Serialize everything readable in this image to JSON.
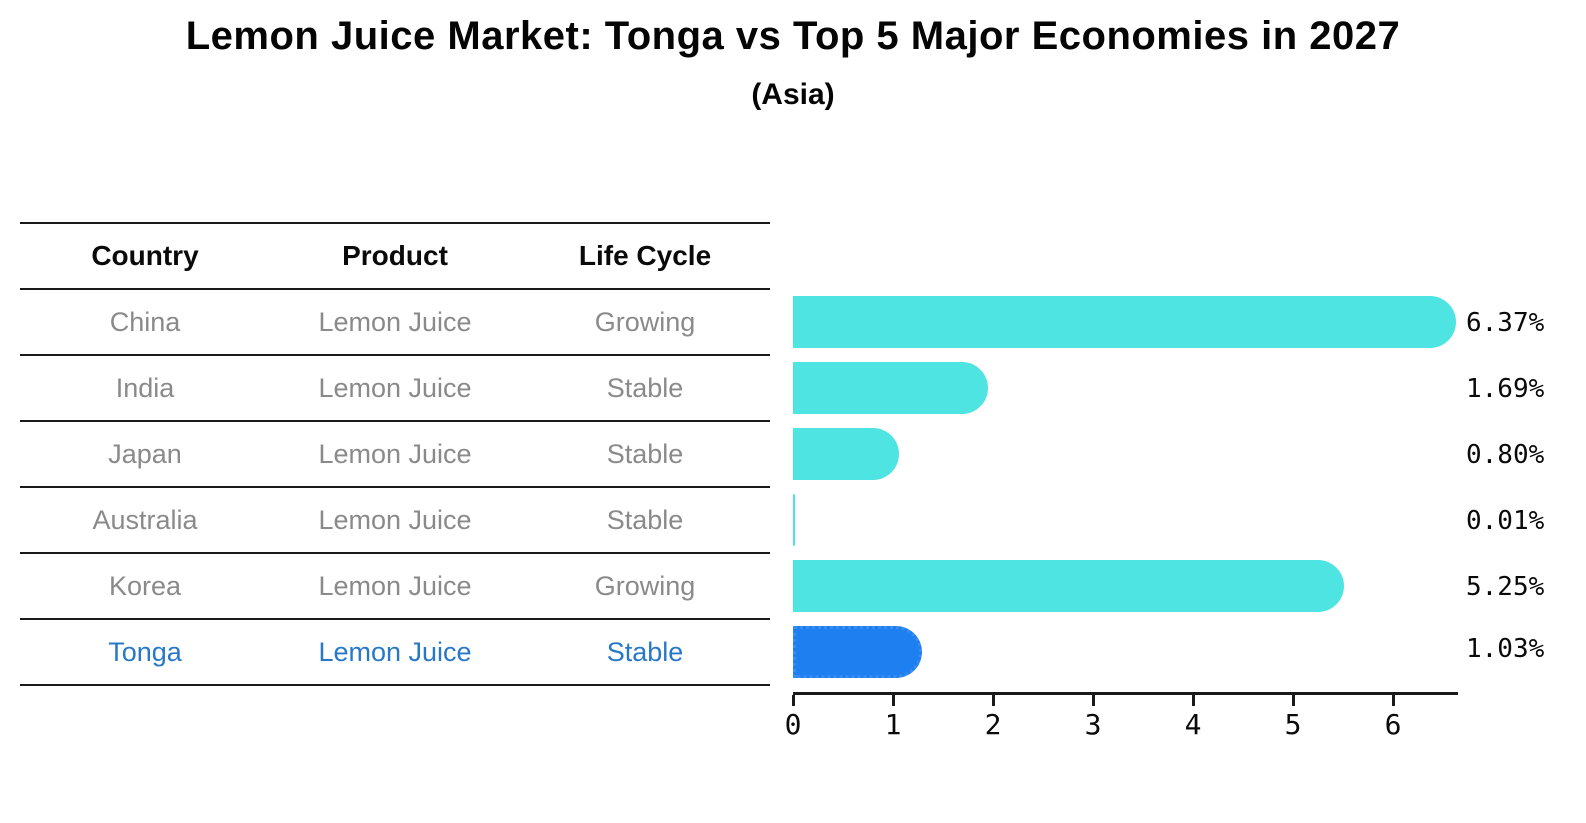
{
  "title": "Lemon Juice Market: Tonga vs Top 5 Major Economies in 2027",
  "subtitle": "(Asia)",
  "table": {
    "headers": {
      "country": "Country",
      "product": "Product",
      "life_cycle": "Life Cycle"
    },
    "rows": [
      {
        "country": "China",
        "product": "Lemon Juice",
        "life_cycle": "Growing",
        "highlight": false
      },
      {
        "country": "India",
        "product": "Lemon Juice",
        "life_cycle": "Stable",
        "highlight": false
      },
      {
        "country": "Japan",
        "product": "Lemon Juice",
        "life_cycle": "Stable",
        "highlight": false
      },
      {
        "country": "Australia",
        "product": "Lemon Juice",
        "life_cycle": "Stable",
        "highlight": false
      },
      {
        "country": "Korea",
        "product": "Lemon Juice",
        "life_cycle": "Growing",
        "highlight": false
      },
      {
        "country": "Tonga",
        "product": "Lemon Juice",
        "life_cycle": "Stable",
        "highlight": true
      }
    ]
  },
  "chart_data": {
    "type": "bar",
    "orientation": "horizontal",
    "title": "Lemon Juice Market: Tonga vs Top 5 Major Economies in 2027",
    "subtitle": "(Asia)",
    "categories": [
      "China",
      "India",
      "Japan",
      "Australia",
      "Korea",
      "Tonga"
    ],
    "values": [
      6.37,
      1.69,
      0.8,
      0.01,
      5.25,
      1.03
    ],
    "value_labels": [
      "6.37%",
      "1.69%",
      "0.80%",
      "0.01%",
      "5.25%",
      "1.03%"
    ],
    "unit": "percent",
    "highlight_index": 5,
    "x_ticks": [
      "0",
      "1",
      "2",
      "3",
      "4",
      "5",
      "6"
    ],
    "xlim": [
      0,
      6.65
    ],
    "grid": false,
    "legend": false,
    "bar_color": "#4de4e2",
    "highlight_bar_color": "#1e80f0",
    "highlight_text_color": "#2878c8",
    "row_text_color": "#8a8a8a"
  }
}
